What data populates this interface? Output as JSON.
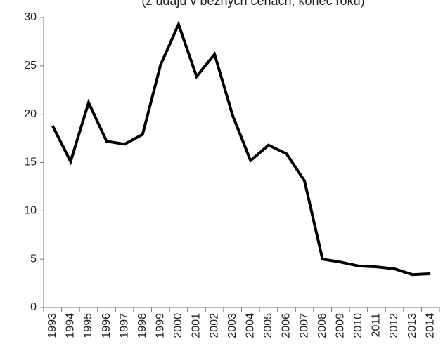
{
  "chart_data": {
    "type": "line",
    "subtitle": "(z údajů v běžných cenách, konec roku)",
    "categories": [
      "1993",
      "1994",
      "1995",
      "1996",
      "1997",
      "1998",
      "1999",
      "2000",
      "2001",
      "2002",
      "2003",
      "2004",
      "2005",
      "2006",
      "2007",
      "2008",
      "2009",
      "2010",
      "2011",
      "2012",
      "2013",
      "2014"
    ],
    "series": [
      {
        "color": "#000000",
        "values": [
          18.8,
          15.1,
          21.2,
          17.2,
          16.9,
          17.9,
          25.1,
          29.3,
          23.9,
          26.2,
          19.9,
          15.2,
          16.8,
          15.9,
          13.1,
          5.0,
          4.7,
          4.3,
          4.2,
          4.0,
          3.4,
          3.5
        ]
      }
    ],
    "ylim": [
      0,
      30
    ],
    "yticks": [
      0,
      5,
      10,
      15,
      20,
      25,
      30
    ],
    "grid": false
  }
}
